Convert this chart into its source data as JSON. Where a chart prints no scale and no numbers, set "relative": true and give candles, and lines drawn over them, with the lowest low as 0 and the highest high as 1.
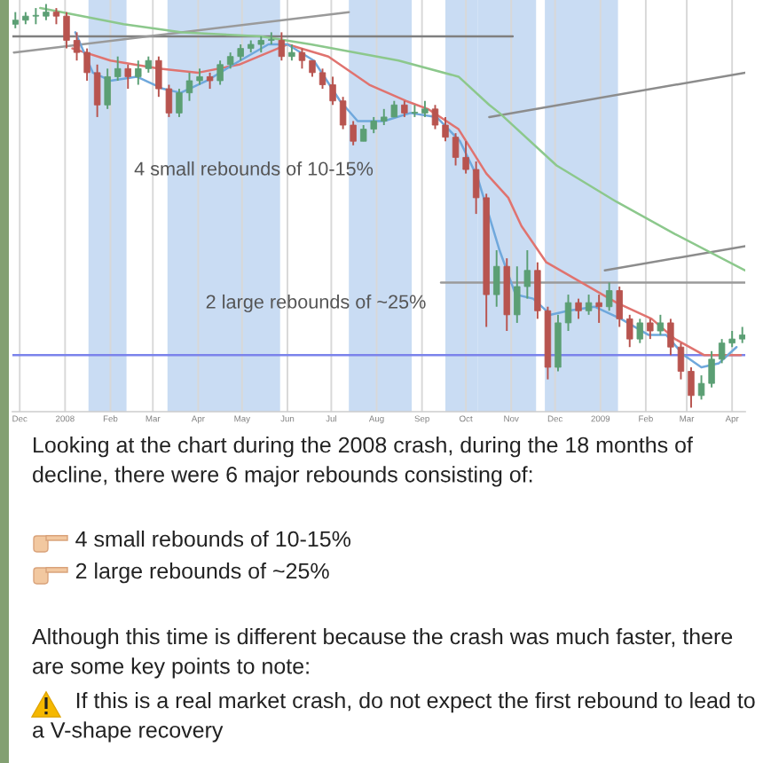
{
  "chart_data": {
    "type": "candlestick",
    "relative": true,
    "xlim": [
      "2007-11-26",
      "2009-04-10"
    ],
    "xticks": [
      {
        "value": "2007-12-01",
        "label": "Dec"
      },
      {
        "value": "2008-01-01",
        "label": "2008"
      },
      {
        "value": "2008-02-01",
        "label": "Feb"
      },
      {
        "value": "2008-03-01",
        "label": "Mar"
      },
      {
        "value": "2008-04-01",
        "label": "Apr"
      },
      {
        "value": "2008-05-01",
        "label": "May"
      },
      {
        "value": "2008-06-01",
        "label": "Jun"
      },
      {
        "value": "2008-07-01",
        "label": "Jul"
      },
      {
        "value": "2008-08-01",
        "label": "Aug"
      },
      {
        "value": "2008-09-01",
        "label": "Sep"
      },
      {
        "value": "2008-10-01",
        "label": "Oct"
      },
      {
        "value": "2008-11-01",
        "label": "Nov"
      },
      {
        "value": "2008-12-01",
        "label": "Dec"
      },
      {
        "value": "2009-01-01",
        "label": "2009"
      },
      {
        "value": "2009-02-01",
        "label": "Feb"
      },
      {
        "value": "2009-03-01",
        "label": "Mar"
      },
      {
        "value": "2009-04-01",
        "label": "Apr"
      }
    ],
    "grid": "x",
    "bands": [
      {
        "axis": "x",
        "from": "2008-01-17",
        "to": "2008-02-12",
        "color": "#c9dcf3"
      },
      {
        "axis": "x",
        "from": "2008-03-11",
        "to": "2008-05-27",
        "color": "#c9dcf3"
      },
      {
        "axis": "x",
        "from": "2008-07-13",
        "to": "2008-08-25",
        "color": "#c9dcf3"
      },
      {
        "axis": "x",
        "from": "2008-09-17",
        "to": "2008-10-09",
        "color": "#c9dcf3"
      },
      {
        "axis": "x",
        "from": "2008-10-09",
        "to": "2008-11-18",
        "color": "#c9dcf3"
      },
      {
        "axis": "x",
        "from": "2008-11-24",
        "to": "2009-01-13",
        "color": "#c9dcf3"
      }
    ],
    "ref_lines": [
      {
        "axis": "y",
        "value": 0.13,
        "color": "#7b83eb"
      }
    ],
    "series": [
      {
        "type": "line",
        "color": "#7f7f7f",
        "x": [
          "2007-11-26",
          "2008-11-02"
        ],
        "values": [
          0.92,
          0.92
        ]
      },
      {
        "type": "line",
        "color": "#9a9a9a",
        "x": [
          "2007-11-27",
          "2008-07-13"
        ],
        "values": [
          0.88,
          0.98
        ]
      },
      {
        "type": "line",
        "color": "#9a9a9a",
        "x": [
          "2008-09-14",
          "2009-04-10"
        ],
        "values": [
          0.31,
          0.31
        ]
      },
      {
        "type": "line",
        "color": "#8c8c8c",
        "x": [
          "2008-10-17",
          "2009-04-10"
        ],
        "values": [
          0.72,
          0.83
        ]
      },
      {
        "type": "line",
        "color": "#8c8c8c",
        "x": [
          "2009-01-04",
          "2009-04-10"
        ],
        "values": [
          0.34,
          0.4
        ]
      },
      {
        "type": "line",
        "color": "#8cc88c",
        "x": [
          "2007-12-15",
          "2008-02-10",
          "2008-03-21",
          "2008-05-14",
          "2008-06-17",
          "2008-08-16",
          "2008-09-26",
          "2008-10-17",
          "2008-10-24",
          "2008-12-02",
          "2009-01-12",
          "2009-02-21",
          "2009-04-10"
        ],
        "values": [
          0.99,
          0.95,
          0.93,
          0.92,
          0.9,
          0.86,
          0.82,
          0.75,
          0.73,
          0.6,
          0.51,
          0.43,
          0.34
        ]
      },
      {
        "type": "line",
        "color": "#e0736f",
        "x": [
          "2008-01-06",
          "2008-02-01",
          "2008-03-05",
          "2008-04-01",
          "2008-04-29",
          "2008-06-01",
          "2008-06-29",
          "2008-07-27",
          "2008-08-21",
          "2008-09-05",
          "2008-09-26",
          "2008-10-15",
          "2008-10-30",
          "2008-11-08",
          "2008-11-25",
          "2008-12-19",
          "2009-01-12",
          "2009-02-05",
          "2009-02-21",
          "2009-03-13",
          "2009-04-07"
        ],
        "values": [
          0.89,
          0.86,
          0.84,
          0.83,
          0.85,
          0.9,
          0.87,
          0.8,
          0.76,
          0.74,
          0.69,
          0.58,
          0.52,
          0.45,
          0.36,
          0.31,
          0.26,
          0.22,
          0.17,
          0.13,
          0.13
        ]
      },
      {
        "type": "line",
        "color": "#6fa8dc",
        "x": [
          "2008-01-08",
          "2008-01-20",
          "2008-02-01",
          "2008-02-19",
          "2008-03-08",
          "2008-03-20",
          "2008-04-07",
          "2008-04-25",
          "2008-05-19",
          "2008-06-01",
          "2008-06-19",
          "2008-07-07",
          "2008-07-19",
          "2008-08-06",
          "2008-08-24",
          "2008-09-11",
          "2008-09-27",
          "2008-10-09",
          "2008-10-24",
          "2008-11-04",
          "2008-11-16",
          "2008-11-28",
          "2008-12-10",
          "2008-12-28",
          "2009-01-15",
          "2009-02-03",
          "2009-02-15",
          "2009-02-27",
          "2009-03-11",
          "2009-03-23",
          "2009-04-04"
        ],
        "values": [
          0.93,
          0.83,
          0.81,
          0.82,
          0.79,
          0.78,
          0.81,
          0.85,
          0.9,
          0.9,
          0.86,
          0.76,
          0.71,
          0.71,
          0.73,
          0.72,
          0.66,
          0.57,
          0.39,
          0.28,
          0.27,
          0.23,
          0.24,
          0.25,
          0.22,
          0.18,
          0.18,
          0.13,
          0.1,
          0.11,
          0.15
        ]
      },
      {
        "x": [
          "2007-11-28",
          "2007-12-05",
          "2007-12-12",
          "2007-12-19",
          "2007-12-26",
          "2008-01-02",
          "2008-01-09",
          "2008-01-16",
          "2008-01-23",
          "2008-01-30",
          "2008-02-06",
          "2008-02-13",
          "2008-02-20",
          "2008-02-27",
          "2008-03-05",
          "2008-03-12",
          "2008-03-19",
          "2008-03-26",
          "2008-04-02",
          "2008-04-09",
          "2008-04-16",
          "2008-04-23",
          "2008-04-30",
          "2008-05-07",
          "2008-05-14",
          "2008-05-21",
          "2008-05-28",
          "2008-06-04",
          "2008-06-11",
          "2008-06-18",
          "2008-06-25",
          "2008-07-02",
          "2008-07-09",
          "2008-07-16",
          "2008-07-23",
          "2008-07-30",
          "2008-08-06",
          "2008-08-13",
          "2008-08-20",
          "2008-08-27",
          "2008-09-03",
          "2008-09-10",
          "2008-09-17",
          "2008-09-24",
          "2008-10-01",
          "2008-10-08",
          "2008-10-15",
          "2008-10-22",
          "2008-10-29",
          "2008-11-05",
          "2008-11-12",
          "2008-11-19",
          "2008-11-26",
          "2008-12-03",
          "2008-12-10",
          "2008-12-17",
          "2008-12-24",
          "2008-12-31",
          "2009-01-07",
          "2009-01-14",
          "2009-01-21",
          "2009-01-28",
          "2009-02-04",
          "2009-02-11",
          "2009-02-18",
          "2009-02-25",
          "2009-03-04",
          "2009-03-11",
          "2009-03-18",
          "2009-03-25",
          "2009-04-01",
          "2009-04-08"
        ],
        "ohlc": [
          [
            0.95,
            0.98,
            0.94,
            0.96
          ],
          [
            0.96,
            0.98,
            0.95,
            0.97
          ],
          [
            0.97,
            0.99,
            0.95,
            0.97
          ],
          [
            0.97,
            1.0,
            0.96,
            0.98
          ],
          [
            0.98,
            0.99,
            0.95,
            0.97
          ],
          [
            0.97,
            0.98,
            0.89,
            0.91
          ],
          [
            0.91,
            0.93,
            0.86,
            0.88
          ],
          [
            0.88,
            0.89,
            0.81,
            0.83
          ],
          [
            0.83,
            0.85,
            0.72,
            0.75
          ],
          [
            0.75,
            0.84,
            0.74,
            0.82
          ],
          [
            0.82,
            0.87,
            0.81,
            0.84
          ],
          [
            0.84,
            0.85,
            0.79,
            0.82
          ],
          [
            0.82,
            0.86,
            0.8,
            0.84
          ],
          [
            0.84,
            0.87,
            0.83,
            0.86
          ],
          [
            0.86,
            0.87,
            0.77,
            0.79
          ],
          [
            0.79,
            0.8,
            0.72,
            0.73
          ],
          [
            0.73,
            0.79,
            0.72,
            0.78
          ],
          [
            0.78,
            0.83,
            0.76,
            0.81
          ],
          [
            0.81,
            0.84,
            0.8,
            0.82
          ],
          [
            0.82,
            0.83,
            0.79,
            0.81
          ],
          [
            0.81,
            0.86,
            0.8,
            0.85
          ],
          [
            0.85,
            0.88,
            0.84,
            0.87
          ],
          [
            0.87,
            0.9,
            0.86,
            0.89
          ],
          [
            0.89,
            0.91,
            0.88,
            0.9
          ],
          [
            0.9,
            0.92,
            0.88,
            0.91
          ],
          [
            0.91,
            0.93,
            0.9,
            0.91
          ],
          [
            0.91,
            0.93,
            0.86,
            0.87
          ],
          [
            0.87,
            0.9,
            0.86,
            0.88
          ],
          [
            0.88,
            0.89,
            0.84,
            0.86
          ],
          [
            0.86,
            0.86,
            0.82,
            0.83
          ],
          [
            0.83,
            0.84,
            0.79,
            0.8
          ],
          [
            0.8,
            0.82,
            0.75,
            0.76
          ],
          [
            0.76,
            0.77,
            0.69,
            0.7
          ],
          [
            0.7,
            0.71,
            0.65,
            0.66
          ],
          [
            0.66,
            0.7,
            0.66,
            0.69
          ],
          [
            0.69,
            0.72,
            0.68,
            0.71
          ],
          [
            0.71,
            0.74,
            0.7,
            0.72
          ],
          [
            0.72,
            0.76,
            0.72,
            0.75
          ],
          [
            0.75,
            0.76,
            0.72,
            0.73
          ],
          [
            0.73,
            0.75,
            0.72,
            0.73
          ],
          [
            0.73,
            0.76,
            0.72,
            0.74
          ],
          [
            0.74,
            0.75,
            0.69,
            0.7
          ],
          [
            0.7,
            0.72,
            0.66,
            0.67
          ],
          [
            0.67,
            0.68,
            0.6,
            0.62
          ],
          [
            0.62,
            0.66,
            0.58,
            0.59
          ],
          [
            0.59,
            0.61,
            0.48,
            0.52
          ],
          [
            0.52,
            0.53,
            0.2,
            0.28
          ],
          [
            0.28,
            0.39,
            0.25,
            0.35
          ],
          [
            0.35,
            0.37,
            0.19,
            0.23
          ],
          [
            0.23,
            0.35,
            0.21,
            0.3
          ],
          [
            0.3,
            0.39,
            0.27,
            0.34
          ],
          [
            0.34,
            0.36,
            0.22,
            0.24
          ],
          [
            0.24,
            0.25,
            0.07,
            0.1
          ],
          [
            0.1,
            0.23,
            0.09,
            0.21
          ],
          [
            0.21,
            0.28,
            0.19,
            0.26
          ],
          [
            0.26,
            0.27,
            0.22,
            0.24
          ],
          [
            0.24,
            0.28,
            0.23,
            0.26
          ],
          [
            0.26,
            0.28,
            0.21,
            0.25
          ],
          [
            0.25,
            0.31,
            0.24,
            0.29
          ],
          [
            0.29,
            0.3,
            0.2,
            0.22
          ],
          [
            0.22,
            0.23,
            0.15,
            0.17
          ],
          [
            0.17,
            0.22,
            0.16,
            0.21
          ],
          [
            0.21,
            0.22,
            0.17,
            0.19
          ],
          [
            0.19,
            0.23,
            0.18,
            0.21
          ],
          [
            0.21,
            0.22,
            0.13,
            0.15
          ],
          [
            0.15,
            0.16,
            0.07,
            0.09
          ],
          [
            0.09,
            0.1,
            0.0,
            0.03
          ],
          [
            0.03,
            0.08,
            0.02,
            0.06
          ],
          [
            0.06,
            0.14,
            0.05,
            0.12
          ],
          [
            0.12,
            0.17,
            0.11,
            0.16
          ],
          [
            0.16,
            0.19,
            0.15,
            0.17
          ],
          [
            0.17,
            0.2,
            0.16,
            0.18
          ]
        ],
        "colors": [
          "#5b9f74",
          "#5b9f74",
          "#5b9f74",
          "#5b9f74",
          "#b8544f",
          "#b8544f",
          "#b8544f",
          "#b8544f",
          "#b8544f",
          "#5b9f74",
          "#5b9f74",
          "#b8544f",
          "#5b9f74",
          "#5b9f74",
          "#b8544f",
          "#b8544f",
          "#5b9f74",
          "#5b9f74",
          "#5b9f74",
          "#b8544f",
          "#5b9f74",
          "#5b9f74",
          "#5b9f74",
          "#5b9f74",
          "#5b9f74",
          "#5b9f74",
          "#b8544f",
          "#5b9f74",
          "#b8544f",
          "#b8544f",
          "#b8544f",
          "#b8544f",
          "#b8544f",
          "#b8544f",
          "#5b9f74",
          "#5b9f74",
          "#5b9f74",
          "#5b9f74",
          "#b8544f",
          "#5b9f74",
          "#5b9f74",
          "#b8544f",
          "#b8544f",
          "#b8544f",
          "#b8544f",
          "#b8544f",
          "#b8544f",
          "#5b9f74",
          "#b8544f",
          "#5b9f74",
          "#5b9f74",
          "#b8544f",
          "#b8544f",
          "#5b9f74",
          "#5b9f74",
          "#b8544f",
          "#5b9f74",
          "#b8544f",
          "#5b9f74",
          "#b8544f",
          "#b8544f",
          "#5b9f74",
          "#b8544f",
          "#5b9f74",
          "#b8544f",
          "#b8544f",
          "#b8544f",
          "#5b9f74",
          "#5b9f74",
          "#5b9f74",
          "#5b9f74",
          "#5b9f74"
        ]
      }
    ],
    "annotations": [
      "4 small rebounds of 10-15%",
      "2 large rebounds of ~25%",
      "Looking at the chart during the 2008 crash, during the 18 months of decline, there were 6 major rebounds consisting of:",
      "4 small rebounds of 10-15%",
      "2 large rebounds of ~25%",
      "Although this time is different because the crash was much faster, there are some key points to note:",
      "If this is a real market crash, do not expect the first rebound to lead to a V-shape recovery"
    ]
  }
}
